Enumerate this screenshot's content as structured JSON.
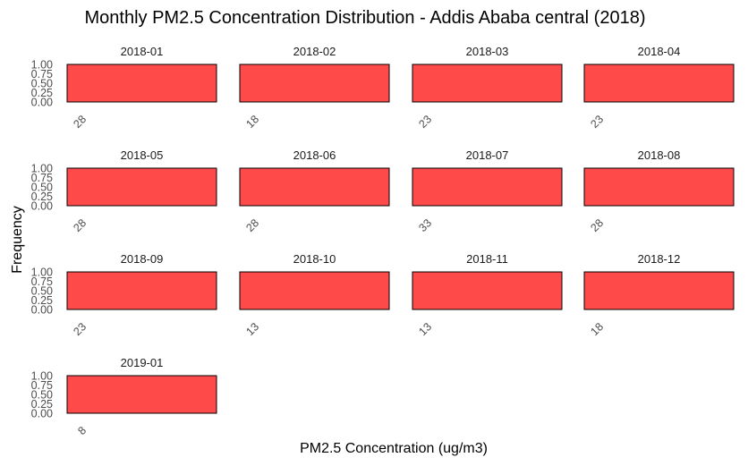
{
  "chart_data": {
    "type": "bar",
    "title": "Monthly PM2.5 Concentration Distribution - Addis Ababa central (2018)",
    "xlabel": "PM2.5 Concentration (ug/m3)",
    "ylabel": "Frequency",
    "ylim": [
      0,
      1
    ],
    "yticks": [
      "0.00",
      "0.25",
      "0.50",
      "0.75",
      "1.00"
    ],
    "bar_color": "#ff4040",
    "panels": [
      {
        "label": "2018-01",
        "x": 28,
        "x_tick": "28",
        "frequency": 1
      },
      {
        "label": "2018-02",
        "x": 18,
        "x_tick": "18",
        "frequency": 1
      },
      {
        "label": "2018-03",
        "x": 23,
        "x_tick": "23",
        "frequency": 1
      },
      {
        "label": "2018-04",
        "x": 23,
        "x_tick": "23",
        "frequency": 1
      },
      {
        "label": "2018-05",
        "x": 28,
        "x_tick": "28",
        "frequency": 1
      },
      {
        "label": "2018-06",
        "x": 28,
        "x_tick": "28",
        "frequency": 1
      },
      {
        "label": "2018-07",
        "x": 33,
        "x_tick": "33",
        "frequency": 1
      },
      {
        "label": "2018-08",
        "x": 28,
        "x_tick": "28",
        "frequency": 1
      },
      {
        "label": "2018-09",
        "x": 23,
        "x_tick": "23",
        "frequency": 1
      },
      {
        "label": "2018-10",
        "x": 13,
        "x_tick": "13",
        "frequency": 1
      },
      {
        "label": "2018-11",
        "x": 13,
        "x_tick": "13",
        "frequency": 1
      },
      {
        "label": "2018-12",
        "x": 18,
        "x_tick": "18",
        "frequency": 1
      },
      {
        "label": "2019-01",
        "x": 8,
        "x_tick": "8",
        "frequency": 1
      }
    ]
  }
}
